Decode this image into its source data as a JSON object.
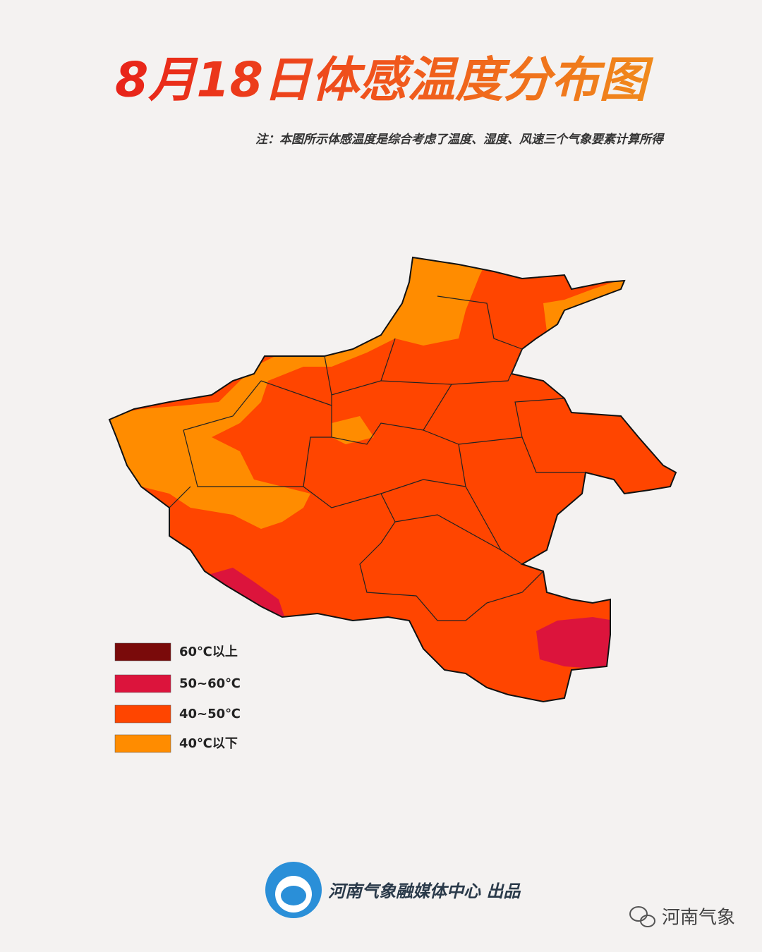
{
  "title": "8月18日体感温度分布图",
  "note": "注：本图所示体感温度是综合考虑了温度、湿度、风速三个气象要素计算所得",
  "legend": [
    {
      "label": "60℃以上",
      "color": "#7a0a0a"
    },
    {
      "label": "50~60℃",
      "color": "#dc143c"
    },
    {
      "label": "40~50℃",
      "color": "#ff4500"
    },
    {
      "label": "40℃以下",
      "color": "#ff8c00"
    }
  ],
  "credit": "河南气象融媒体中心 出品",
  "watermark": "河南气象"
}
